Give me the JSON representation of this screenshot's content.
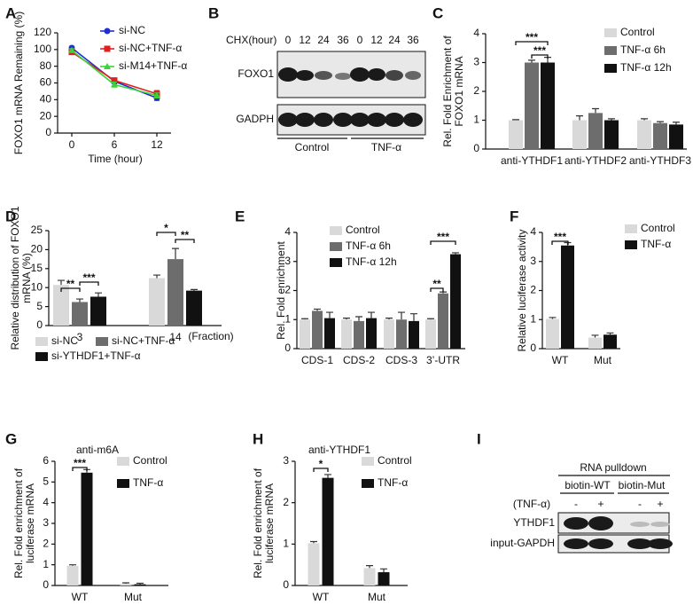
{
  "chart_data": [
    {
      "type": "line",
      "panel": "A",
      "xlabel": "Time (hour)",
      "ylabel": [
        "FOXO1 mRNA Remaining (%)"
      ],
      "x": [
        0,
        6,
        12
      ],
      "xlim": [
        -2,
        14
      ],
      "xticks": [
        0,
        6,
        12
      ],
      "ylim": [
        0,
        120
      ],
      "yticks": [
        0,
        20,
        40,
        60,
        80,
        100,
        120
      ],
      "series": [
        {
          "name": "si-NC",
          "color": "#1f2fd0",
          "marker": "circle",
          "values": [
            102,
            62,
            42
          ],
          "errors": [
            2,
            3,
            3
          ]
        },
        {
          "name": "si-NC+TNF-α",
          "color": "#e02020",
          "marker": "square",
          "values": [
            97,
            63,
            47
          ],
          "errors": [
            2,
            3,
            4
          ]
        },
        {
          "name": "si-M14+TNF-α",
          "color": "#3ad43a",
          "marker": "triangle",
          "values": [
            99,
            58,
            45
          ],
          "errors": [
            2,
            3,
            3
          ]
        }
      ]
    },
    {
      "type": "bar",
      "panel": "C",
      "ylabel": [
        "Rel. Fold Enrichment of",
        "FOXO1 mRNA"
      ],
      "categories": [
        "anti-YTHDF1",
        "anti-YTHDF2",
        "anti-YTHDF3"
      ],
      "ylim": [
        0,
        4
      ],
      "yticks": [
        0,
        1,
        2,
        3,
        4
      ],
      "annotations": [
        "***",
        "***"
      ],
      "series": [
        {
          "name": "Control",
          "color": "#d9d9d9",
          "values": [
            1,
            1,
            1
          ],
          "errors": [
            0.02,
            0.15,
            0.05
          ]
        },
        {
          "name": "TNF-α 6h",
          "color": "#6d6d6d",
          "values": [
            3.0,
            1.25,
            0.9
          ],
          "errors": [
            0.08,
            0.15,
            0.05
          ]
        },
        {
          "name": "TNF-α 12h",
          "color": "#111111",
          "values": [
            3.0,
            1.0,
            0.85
          ],
          "errors": [
            0.18,
            0.05,
            0.08
          ]
        }
      ]
    },
    {
      "type": "bar",
      "panel": "D",
      "ylabel": [
        "Relative distribution of FOXO1",
        "mRNA (%)"
      ],
      "xlabel": "(Fraction)",
      "categories": [
        "3",
        "14"
      ],
      "ylim": [
        0,
        25
      ],
      "yticks": [
        0,
        5,
        10,
        15,
        20,
        25
      ],
      "annotations": [
        "**",
        "***",
        "*",
        "**"
      ],
      "series": [
        {
          "name": "si-NC",
          "color": "#d9d9d9",
          "values": [
            10.7,
            12.5
          ],
          "errors": [
            1.2,
            0.8
          ]
        },
        {
          "name": "si-NC+TNF-α",
          "color": "#6d6d6d",
          "values": [
            6.2,
            17.5
          ],
          "errors": [
            0.8,
            2.8
          ]
        },
        {
          "name": "si-YTHDF1+TNF-α",
          "color": "#111111",
          "values": [
            7.6,
            9.2
          ],
          "errors": [
            1.0,
            0.3
          ]
        }
      ]
    },
    {
      "type": "bar",
      "panel": "E",
      "ylabel": [
        "Rel. Fold enrichment"
      ],
      "categories": [
        "CDS-1",
        "CDS-2",
        "CDS-3",
        "3’-UTR"
      ],
      "ylim": [
        0,
        4
      ],
      "yticks": [
        0,
        1,
        2,
        3,
        4
      ],
      "annotations": [
        "**",
        "***"
      ],
      "series": [
        {
          "name": "Control",
          "color": "#d9d9d9",
          "values": [
            1,
            1,
            1,
            1
          ],
          "errors": [
            0.03,
            0.05,
            0.05,
            0.03
          ]
        },
        {
          "name": "TNF-α 6h",
          "color": "#6d6d6d",
          "values": [
            1.3,
            0.95,
            1.0,
            1.9
          ],
          "errors": [
            0.06,
            0.15,
            0.25,
            0.05
          ]
        },
        {
          "name": "TNF-α 12h",
          "color": "#111111",
          "values": [
            1.05,
            1.05,
            0.95,
            3.25
          ],
          "errors": [
            0.2,
            0.2,
            0.25,
            0.05
          ]
        }
      ]
    },
    {
      "type": "bar",
      "panel": "F",
      "ylabel": [
        "Relative luciferase activity"
      ],
      "categories": [
        "WT",
        "Mut"
      ],
      "ylim": [
        0,
        4
      ],
      "yticks": [
        0,
        1,
        2,
        3,
        4
      ],
      "annotations": [
        "***"
      ],
      "series": [
        {
          "name": "Control",
          "color": "#d9d9d9",
          "values": [
            1.02,
            0.38
          ],
          "errors": [
            0.05,
            0.08
          ]
        },
        {
          "name": "TNF-α",
          "color": "#111111",
          "values": [
            3.55,
            0.48
          ],
          "errors": [
            0.1,
            0.06
          ]
        }
      ]
    },
    {
      "type": "bar",
      "panel": "G",
      "title": "anti-m6A",
      "ylabel": [
        "Rel. Fold enrichment of",
        "luciferase mRNA"
      ],
      "categories": [
        "WT",
        "Mut"
      ],
      "ylim": [
        0,
        6
      ],
      "yticks": [
        0,
        1,
        2,
        3,
        4,
        5,
        6
      ],
      "annotations": [
        "***"
      ],
      "series": [
        {
          "name": "Control",
          "color": "#d9d9d9",
          "values": [
            0.95,
            0.08
          ],
          "errors": [
            0.05,
            0.05
          ]
        },
        {
          "name": "TNF-α",
          "color": "#111111",
          "values": [
            5.45,
            0.06
          ],
          "errors": [
            0.15,
            0.05
          ]
        }
      ]
    },
    {
      "type": "bar",
      "panel": "H",
      "title": "anti-YTHDF1",
      "ylabel": [
        "Rel. Fold enrichment of",
        "luciferase mRNA"
      ],
      "categories": [
        "WT",
        "Mut"
      ],
      "ylim": [
        0,
        3
      ],
      "yticks": [
        0,
        1,
        2,
        3
      ],
      "annotations": [
        "*"
      ],
      "series": [
        {
          "name": "Control",
          "color": "#d9d9d9",
          "values": [
            1.02,
            0.42
          ],
          "errors": [
            0.04,
            0.06
          ]
        },
        {
          "name": "TNF-α",
          "color": "#111111",
          "values": [
            2.6,
            0.32
          ],
          "errors": [
            0.08,
            0.08
          ]
        }
      ]
    }
  ],
  "blot_b": {
    "panel": "B",
    "treatment": "CHX(hour)",
    "lanes": [
      "0",
      "12",
      "24",
      "36",
      "0",
      "12",
      "24",
      "36"
    ],
    "rows": [
      "FOXO1",
      "GADPH"
    ],
    "groups": [
      "Control",
      "TNF-α"
    ]
  },
  "blot_i": {
    "panel": "I",
    "title": "RNA pulldown",
    "groups": [
      "biotin-WT",
      "biotin-Mut"
    ],
    "treatment": "(TNF-α)",
    "lanes": [
      "-",
      "+",
      "-",
      "+"
    ],
    "rows": [
      "YTHDF1",
      "input-GAPDH"
    ]
  }
}
